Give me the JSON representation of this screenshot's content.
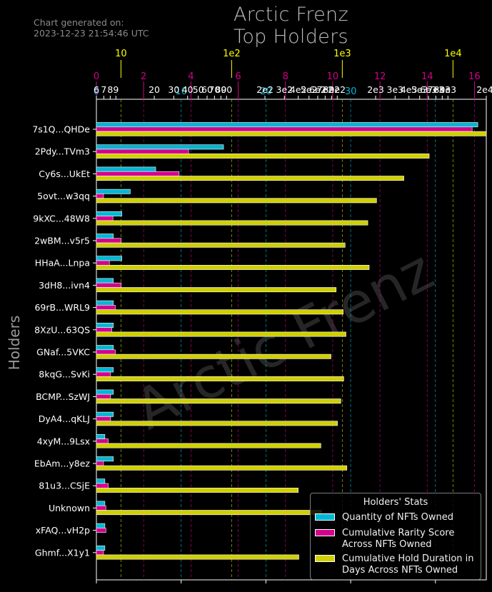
{
  "header": {
    "generated_line1": "Chart generated on:",
    "generated_line2": "2023-12-23 21:54:46 UTC",
    "title_line1": "Arctic Frenz",
    "title_line2": "Top Holders"
  },
  "watermark": "Arctic Frenz",
  "colors": {
    "quantity": "#00b8d4",
    "rarity": "#d4008c",
    "duration": "#d0d000",
    "background": "#000000"
  },
  "chart_data": {
    "type": "bar",
    "orientation": "horizontal",
    "ylabel": "Holders",
    "categories": [
      "7s1Q...QHDe",
      "2Pdy...TVm3",
      "Cy6s...UkEt",
      "5ovt...w3qq",
      "9kXC...48W8",
      "2wBM...v5r5",
      "HHaA...Lnpa",
      "3dH8...ivn4",
      "69rB...WRL9",
      "8XzU...63QS",
      "GNaf...5VKC",
      "8kqG...SvKi",
      "BCMP...SzWJ",
      "DyA4...qKLJ",
      "4xyM...9Lsx",
      "EbAm...y8ez",
      "81u3...CSjE",
      "Unknown",
      "xFAQ...vH2p",
      "Ghmf...X1y1"
    ],
    "series": [
      {
        "name": "Quantity of NFTs Owned",
        "axis": "cyan",
        "color": "#00b8d4",
        "values": [
          45,
          15,
          7,
          4,
          3,
          2,
          3,
          2,
          2,
          2,
          2,
          2,
          2,
          2,
          1,
          2,
          1,
          1,
          1,
          1
        ]
      },
      {
        "name": "Cumulative Rarity Score Across NFTs Owned",
        "axis": "magenta",
        "color": "#d4008c",
        "values": [
          15.9,
          3.9,
          3.5,
          0.3,
          0.7,
          1.05,
          0.55,
          1.05,
          0.8,
          0.65,
          0.8,
          0.6,
          0.6,
          0.6,
          0.5,
          0.3,
          0.5,
          0.4,
          0.4,
          0.3
        ]
      },
      {
        "name": "Cumulative Hold Duration in Days Across NFTs Owned",
        "axis": "log",
        "color": "#d0d000",
        "values": [
          20000,
          6100,
          3600,
          2040,
          1700,
          1060,
          1750,
          880,
          1020,
          1080,
          790,
          1030,
          970,
          905,
          640,
          1100,
          400,
          650,
          0,
          405
        ]
      }
    ],
    "axes": {
      "cyan": {
        "ticks": [
          0,
          10,
          20,
          30,
          40
        ],
        "range": [
          0,
          46
        ]
      },
      "magenta": {
        "ticks": [
          0,
          2,
          4,
          6,
          8,
          10,
          12,
          14,
          16
        ],
        "range": [
          0,
          16.5
        ]
      },
      "log": {
        "ticks": [
          "10",
          "1e2",
          "1e3",
          "1e4"
        ],
        "range": [
          6,
          20000
        ]
      },
      "bottom": {
        "tick_labels": [
          "6",
          "7",
          "8",
          "9",
          "20",
          "30",
          "40",
          "50",
          "60",
          "70",
          "80",
          "90",
          "2e2",
          "3e2",
          "4e2",
          "5e2",
          "6e2",
          "7e2",
          "8e2",
          "9e2",
          "2e3",
          "3e3",
          "4e3",
          "5e3",
          "6e3",
          "7e3",
          "8e3",
          "9e3",
          "2e4"
        ]
      }
    },
    "legend": {
      "title": "Holders' Stats",
      "placement": "lower-right"
    },
    "grid": false
  }
}
